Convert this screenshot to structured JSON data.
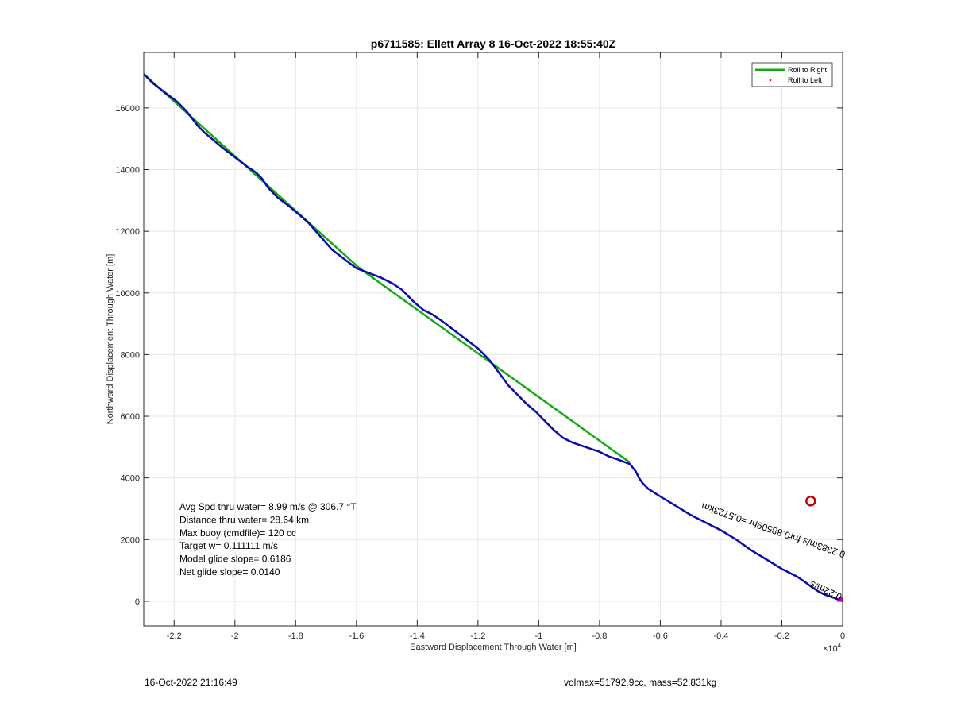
{
  "chart_data": {
    "type": "line",
    "title": "p6711585: Ellett Array 8 16-Oct-2022 18:55:40Z",
    "xlabel": "Eastward Displacement Through Water [m]",
    "ylabel": "Northward Displacement Through Water [m]",
    "x_scale_label": "×10",
    "x_scale_exponent": "4",
    "xlim": [
      -23000,
      0
    ],
    "ylim": [
      -800,
      17800
    ],
    "x_ticks": [
      -22000,
      -20000,
      -18000,
      -16000,
      -14000,
      -12000,
      -10000,
      -8000,
      -6000,
      -4000,
      -2000,
      0
    ],
    "x_tick_labels": [
      "-2.2",
      "-2",
      "-1.8",
      "-1.6",
      "-1.4",
      "-1.2",
      "-1",
      "-0.8",
      "-0.6",
      "-0.4",
      "-0.2",
      "0"
    ],
    "y_ticks": [
      0,
      2000,
      4000,
      6000,
      8000,
      10000,
      12000,
      14000,
      16000
    ],
    "y_tick_labels": [
      "0",
      "2000",
      "4000",
      "6000",
      "8000",
      "10000",
      "12000",
      "14000",
      "16000"
    ],
    "grid": true,
    "legend": {
      "placement": "top-right",
      "entries": [
        {
          "label": "Roll to Right",
          "color": "#17a817",
          "marker": "line"
        },
        {
          "label": "Roll to Left",
          "color": "#e01010",
          "marker": "dot"
        }
      ]
    },
    "series": [
      {
        "name": "Roll to Right",
        "color": "#17a817",
        "x": [
          -23000,
          -15900,
          -7000
        ],
        "y": [
          17100,
          10800,
          4500
        ]
      },
      {
        "color": "#0a0aaa",
        "x": [
          -23000,
          -22700,
          -22300,
          -21900,
          -21600,
          -21400,
          -21200,
          -21000,
          -20700,
          -20400,
          -20000,
          -19600,
          -19300,
          -19100,
          -18900,
          -18600,
          -18200,
          -17900,
          -17600,
          -17200,
          -16800,
          -16400,
          -16000,
          -15600,
          -15200,
          -14800,
          -14500,
          -14300,
          -14100,
          -13800,
          -13500,
          -13200,
          -12800,
          -12400,
          -12000,
          -11600,
          -11300,
          -11000,
          -10700,
          -10400,
          -10100,
          -9800,
          -9500,
          -9200,
          -8900,
          -8600,
          -8300,
          -8000,
          -7700,
          -7400,
          -7000,
          -6800,
          -6700,
          -6600,
          -6400,
          -6000,
          -5500,
          -5000,
          -4500,
          -4000,
          -3500,
          -3000,
          -2500,
          -2000,
          -1500,
          -1200,
          -1000,
          -800,
          -600,
          -400,
          -200,
          0
        ],
        "y": [
          17100,
          16800,
          16500,
          16200,
          15900,
          15650,
          15400,
          15200,
          14950,
          14700,
          14400,
          14100,
          13900,
          13700,
          13400,
          13100,
          12800,
          12550,
          12300,
          11850,
          11400,
          11100,
          10800,
          10650,
          10500,
          10300,
          10100,
          9900,
          9700,
          9450,
          9300,
          9100,
          8800,
          8500,
          8200,
          7800,
          7400,
          7000,
          6700,
          6400,
          6150,
          5850,
          5550,
          5300,
          5150,
          5050,
          4950,
          4850,
          4700,
          4600,
          4450,
          4200,
          4000,
          3850,
          3650,
          3400,
          3100,
          2800,
          2550,
          2300,
          2000,
          1650,
          1350,
          1050,
          800,
          600,
          450,
          320,
          220,
          150,
          80,
          0
        ]
      }
    ],
    "markers": [
      {
        "type": "circle",
        "x": -1050,
        "y": 3250,
        "color": "#cc0000"
      },
      {
        "type": "dot",
        "x": 0,
        "y": 70,
        "color": "#cc00cc"
      }
    ],
    "annotations": [
      "Avg Spd thru water=  8.99 m/s @ 306.7 °T",
      "Distance thru water= 28.64 km",
      "Max buoy (cmdfile)= 120 cc",
      "Target w= 0.111111 m/s",
      "Model glide slope= 0.6186",
      "Net glide slope= 0.0140"
    ],
    "rotated_annotation": "0.2383m/s for0.88509hr =0.5723km",
    "rotated_annotation_position": {
      "x": -4600,
      "y": 3200,
      "angle_deg": 19
    },
    "end_label_glyphs": "0.22m/s"
  },
  "footer": {
    "left_text": "16-Oct-2022 21:16:49",
    "right_text": "volmax=51792.9cc, mass=52.831kg"
  }
}
